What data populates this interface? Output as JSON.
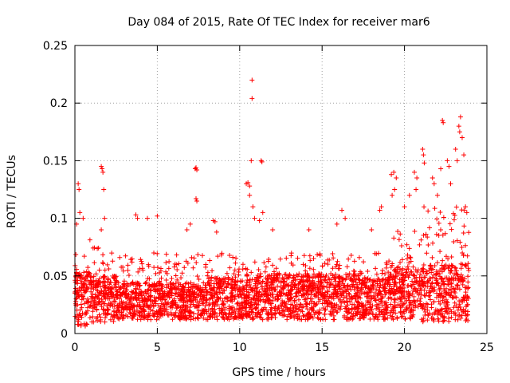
{
  "chart_data": {
    "type": "scatter",
    "title": "Day 084 of 2015, Rate Of TEC Index for receiver mar6",
    "xlabel": "GPS time / hours",
    "ylabel": "ROTI / TECUs",
    "xlim": [
      0,
      25
    ],
    "ylim": [
      0,
      0.25
    ],
    "grid": true,
    "marker": "+",
    "color": "#ff0000",
    "x_ticks": [
      0,
      5,
      10,
      15,
      20,
      25
    ],
    "x_tick_labels": [
      "0",
      "5",
      "10",
      "15",
      "20",
      "25"
    ],
    "y_ticks": [
      0,
      0.05,
      0.1,
      0.15,
      0.2,
      0.25
    ],
    "y_tick_labels": [
      "0",
      "0.05",
      "0.1",
      "0.15",
      "0.2",
      "0.25"
    ],
    "data_range_x": [
      0,
      23.9
    ],
    "series": [
      {
        "name": "ROTI",
        "outliers": [
          {
            "x": 0.2,
            "y": 0.13
          },
          {
            "x": 0.25,
            "y": 0.125
          },
          {
            "x": 0.3,
            "y": 0.105
          },
          {
            "x": 0.1,
            "y": 0.095
          },
          {
            "x": 0.5,
            "y": 0.1
          },
          {
            "x": 1.6,
            "y": 0.145
          },
          {
            "x": 1.65,
            "y": 0.143
          },
          {
            "x": 1.7,
            "y": 0.14
          },
          {
            "x": 1.75,
            "y": 0.125
          },
          {
            "x": 1.8,
            "y": 0.1
          },
          {
            "x": 1.6,
            "y": 0.09
          },
          {
            "x": 3.7,
            "y": 0.103
          },
          {
            "x": 3.8,
            "y": 0.1
          },
          {
            "x": 4.4,
            "y": 0.1
          },
          {
            "x": 5.0,
            "y": 0.102
          },
          {
            "x": 7.3,
            "y": 0.143
          },
          {
            "x": 7.35,
            "y": 0.144
          },
          {
            "x": 7.4,
            "y": 0.142
          },
          {
            "x": 7.35,
            "y": 0.117
          },
          {
            "x": 7.4,
            "y": 0.115
          },
          {
            "x": 6.8,
            "y": 0.09
          },
          {
            "x": 7.0,
            "y": 0.095
          },
          {
            "x": 8.4,
            "y": 0.098
          },
          {
            "x": 8.5,
            "y": 0.097
          },
          {
            "x": 8.6,
            "y": 0.088
          },
          {
            "x": 10.4,
            "y": 0.13
          },
          {
            "x": 10.5,
            "y": 0.131
          },
          {
            "x": 10.6,
            "y": 0.128
          },
          {
            "x": 10.75,
            "y": 0.22
          },
          {
            "x": 10.75,
            "y": 0.204
          },
          {
            "x": 10.7,
            "y": 0.15
          },
          {
            "x": 10.6,
            "y": 0.12
          },
          {
            "x": 10.8,
            "y": 0.11
          },
          {
            "x": 10.9,
            "y": 0.1
          },
          {
            "x": 11.3,
            "y": 0.15
          },
          {
            "x": 11.35,
            "y": 0.149
          },
          {
            "x": 11.4,
            "y": 0.105
          },
          {
            "x": 11.2,
            "y": 0.098
          },
          {
            "x": 16.2,
            "y": 0.107
          },
          {
            "x": 16.4,
            "y": 0.1
          },
          {
            "x": 18.6,
            "y": 0.11
          },
          {
            "x": 18.5,
            "y": 0.107
          },
          {
            "x": 19.2,
            "y": 0.138
          },
          {
            "x": 19.35,
            "y": 0.14
          },
          {
            "x": 19.5,
            "y": 0.135
          },
          {
            "x": 19.4,
            "y": 0.125
          },
          {
            "x": 19.25,
            "y": 0.12
          },
          {
            "x": 20.6,
            "y": 0.14
          },
          {
            "x": 20.75,
            "y": 0.135
          },
          {
            "x": 20.7,
            "y": 0.125
          },
          {
            "x": 21.1,
            "y": 0.16
          },
          {
            "x": 21.15,
            "y": 0.155
          },
          {
            "x": 21.2,
            "y": 0.148
          },
          {
            "x": 21.7,
            "y": 0.135
          },
          {
            "x": 21.8,
            "y": 0.13
          },
          {
            "x": 22.2,
            "y": 0.143
          },
          {
            "x": 22.3,
            "y": 0.185
          },
          {
            "x": 22.35,
            "y": 0.183
          },
          {
            "x": 22.6,
            "y": 0.15
          },
          {
            "x": 22.7,
            "y": 0.145
          },
          {
            "x": 23.1,
            "y": 0.16
          },
          {
            "x": 23.2,
            "y": 0.15
          },
          {
            "x": 23.3,
            "y": 0.18
          },
          {
            "x": 23.35,
            "y": 0.175
          },
          {
            "x": 23.4,
            "y": 0.188
          },
          {
            "x": 23.5,
            "y": 0.17
          },
          {
            "x": 23.6,
            "y": 0.155
          },
          {
            "x": 23.7,
            "y": 0.11
          },
          {
            "x": 12.0,
            "y": 0.09
          },
          {
            "x": 14.2,
            "y": 0.09
          },
          {
            "x": 15.9,
            "y": 0.095
          },
          {
            "x": 18.0,
            "y": 0.09
          },
          {
            "x": 20.0,
            "y": 0.11
          },
          {
            "x": 20.3,
            "y": 0.12
          },
          {
            "x": 22.0,
            "y": 0.12
          },
          {
            "x": 22.8,
            "y": 0.13
          }
        ],
        "density_profile": [
          {
            "x_start": 0.0,
            "x_end": 1.0,
            "y_low": 0.005,
            "y_typ": 0.03,
            "y_high": 0.085
          },
          {
            "x_start": 1.0,
            "x_end": 2.5,
            "y_low": 0.01,
            "y_typ": 0.03,
            "y_high": 0.075
          },
          {
            "x_start": 2.5,
            "x_end": 5.0,
            "y_low": 0.012,
            "y_typ": 0.028,
            "y_high": 0.07
          },
          {
            "x_start": 5.0,
            "x_end": 8.0,
            "y_low": 0.012,
            "y_typ": 0.028,
            "y_high": 0.07
          },
          {
            "x_start": 8.0,
            "x_end": 11.0,
            "y_low": 0.012,
            "y_typ": 0.03,
            "y_high": 0.075
          },
          {
            "x_start": 11.0,
            "x_end": 14.0,
            "y_low": 0.012,
            "y_typ": 0.032,
            "y_high": 0.07
          },
          {
            "x_start": 14.0,
            "x_end": 17.0,
            "y_low": 0.012,
            "y_typ": 0.032,
            "y_high": 0.07
          },
          {
            "x_start": 17.0,
            "x_end": 19.0,
            "y_low": 0.012,
            "y_typ": 0.03,
            "y_high": 0.07
          },
          {
            "x_start": 19.0,
            "x_end": 21.0,
            "y_low": 0.012,
            "y_typ": 0.035,
            "y_high": 0.09
          },
          {
            "x_start": 21.0,
            "x_end": 23.9,
            "y_low": 0.01,
            "y_typ": 0.035,
            "y_high": 0.11
          }
        ]
      }
    ]
  }
}
